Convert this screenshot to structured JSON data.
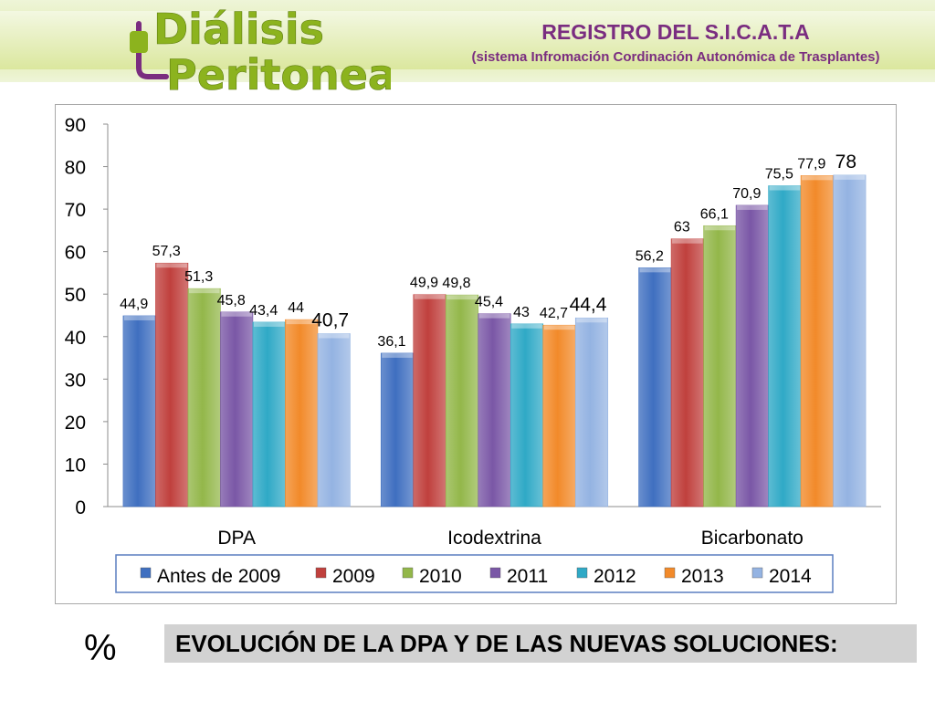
{
  "header": {
    "logo_line1": "Diálisis",
    "logo_line2": "Peritoneal",
    "title": "REGISTRO DEL S.I.C.A.T.A",
    "subtitle": "(sistema Infromación Cordinación Autonómica de Trasplantes)",
    "colors": {
      "purple": "#7a2d80",
      "green": "#8cb31e"
    }
  },
  "chart_data": {
    "type": "bar",
    "title": "",
    "xlabel": "",
    "ylabel": "",
    "ylim": [
      0,
      90
    ],
    "yticks": [
      0,
      10,
      20,
      30,
      40,
      50,
      60,
      70,
      80,
      90
    ],
    "grid": false,
    "legend_position": "bottom",
    "categories": [
      "DPA",
      "Icodextrina",
      "Bicarbonato"
    ],
    "series": [
      {
        "name": "Antes de 2009",
        "color": "#3f6fc0",
        "values": [
          44.9,
          36.1,
          56.2
        ],
        "labels": [
          "44,9",
          "36,1",
          "56,2"
        ]
      },
      {
        "name": "2009",
        "color": "#c0403d",
        "values": [
          57.3,
          49.9,
          63
        ],
        "labels": [
          "57,3",
          "49,9",
          "63"
        ]
      },
      {
        "name": "2010",
        "color": "#93b74a",
        "values": [
          51.3,
          49.8,
          66.1
        ],
        "labels": [
          "51,3",
          "49,8",
          "66,1"
        ]
      },
      {
        "name": "2011",
        "color": "#7a57a6",
        "values": [
          45.8,
          45.4,
          70.9
        ],
        "labels": [
          "45,8",
          "45,4",
          "70,9"
        ]
      },
      {
        "name": "2012",
        "color": "#2fa9c6",
        "values": [
          43.4,
          43,
          75.5
        ],
        "labels": [
          "43,4",
          "43",
          "75,5"
        ]
      },
      {
        "name": "2013",
        "color": "#f28a2a",
        "values": [
          44,
          42.7,
          77.9
        ],
        "labels": [
          "44",
          "42,7",
          "77,9"
        ]
      },
      {
        "name": "2014",
        "color": "#94b3e2",
        "values": [
          40.7,
          44.4,
          78
        ],
        "labels": [
          "40,7",
          "44,4",
          "78"
        ]
      }
    ]
  },
  "footer": {
    "percent": "%",
    "caption": "EVOLUCIÓN DE LA DPA Y DE LAS NUEVAS SOLUCIONES:"
  }
}
